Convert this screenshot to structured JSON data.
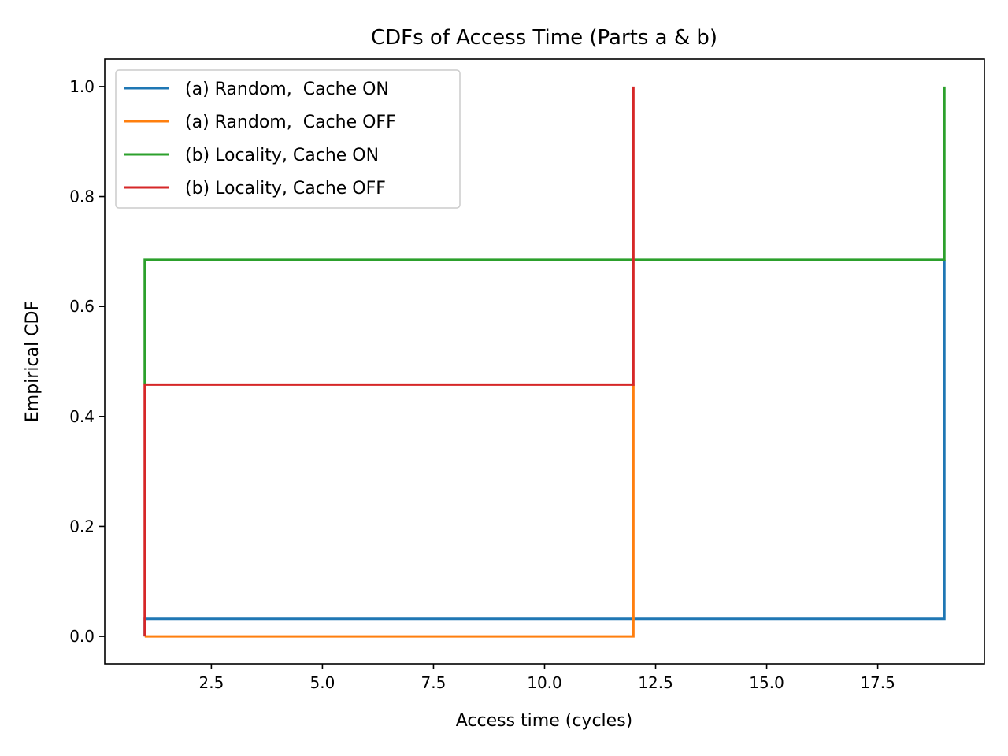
{
  "chart_data": {
    "type": "line",
    "step": true,
    "title": "CDFs of Access Time (Parts a & b)",
    "xlabel": "Access time (cycles)",
    "ylabel": "Empirical CDF",
    "xlim": [
      0.1,
      19.9
    ],
    "ylim": [
      -0.05,
      1.05
    ],
    "xticks": [
      2.5,
      5.0,
      7.5,
      10.0,
      12.5,
      15.0,
      17.5
    ],
    "xtick_labels": [
      "2.5",
      "5.0",
      "7.5",
      "10.0",
      "12.5",
      "15.0",
      "17.5"
    ],
    "yticks": [
      0.0,
      0.2,
      0.4,
      0.6,
      0.8,
      1.0
    ],
    "ytick_labels": [
      "0.0",
      "0.2",
      "0.4",
      "0.6",
      "0.8",
      "1.0"
    ],
    "grid": false,
    "legend_position": "top-left",
    "series": [
      {
        "name": "(a) Random,  Cache ON",
        "color": "#1f77b4",
        "x": [
          1,
          1,
          19,
          19
        ],
        "y": [
          0.0,
          0.032,
          0.032,
          0.685
        ]
      },
      {
        "name": "(a) Random,  Cache OFF",
        "color": "#ff7f0e",
        "x": [
          1,
          12,
          12
        ],
        "y": [
          0.0,
          0.0,
          0.458
        ]
      },
      {
        "name": "(b) Locality, Cache ON",
        "color": "#2ca02c",
        "x": [
          1,
          1,
          19,
          19
        ],
        "y": [
          0.458,
          0.685,
          0.685,
          1.0
        ]
      },
      {
        "name": "(b) Locality, Cache OFF",
        "color": "#d62728",
        "x": [
          1,
          1,
          12,
          12
        ],
        "y": [
          0.0,
          0.458,
          0.458,
          1.0
        ]
      }
    ]
  }
}
